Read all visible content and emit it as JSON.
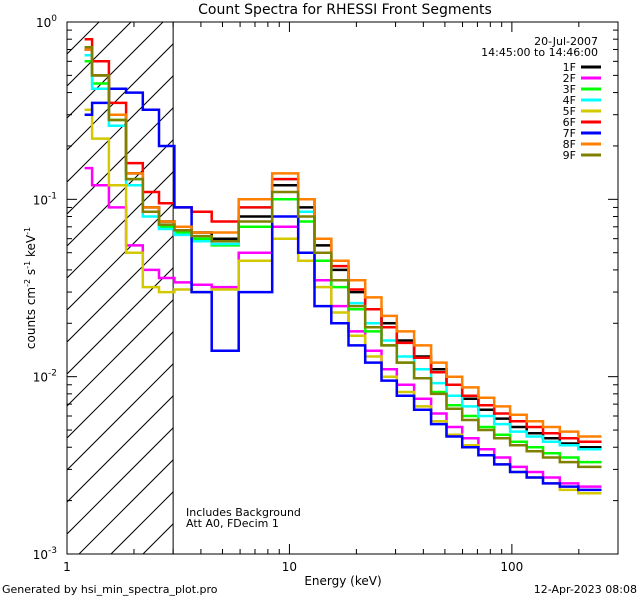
{
  "chart_data": {
    "type": "line",
    "title": "Count Spectra for RHESSI Front Segments",
    "xlabel": "Energy (keV)",
    "ylabel_main": "counts cm",
    "ylabel_sup1": "-2",
    "ylabel_mid": " s",
    "ylabel_sup2": "-1",
    "ylabel_end": " keV",
    "ylabel_sup3": "-1",
    "xscale": "log",
    "yscale": "log",
    "xlim": [
      1.0,
      300.0
    ],
    "ylim": [
      0.001,
      1.0
    ],
    "x_ticks": [
      {
        "value": 1,
        "label": "1"
      },
      {
        "value": 10,
        "label": "10"
      },
      {
        "value": 100,
        "label": "100"
      }
    ],
    "y_ticks": [
      {
        "value": 1,
        "base": "10",
        "exp": "0"
      },
      {
        "value": 0.1,
        "base": "10",
        "exp": "-1"
      },
      {
        "value": 0.01,
        "base": "10",
        "exp": "-2"
      },
      {
        "value": 0.001,
        "base": "10",
        "exp": "-3"
      }
    ],
    "hatched_region": [
      1.0,
      3.0
    ],
    "date": "20-Jul-2007",
    "time_range": "14:45:00 to 14:46:00",
    "annotation_1": "Includes Background",
    "annotation_2": "Att A0, FDecim 1",
    "legend_position": "top-right",
    "series": [
      {
        "name": "1F",
        "color": "#000000",
        "values": [
          0.7,
          0.5,
          0.3,
          0.14,
          0.09,
          0.075,
          0.07,
          0.065,
          0.06,
          0.08,
          0.12,
          0.09,
          0.055,
          0.04,
          0.03,
          0.024,
          0.02,
          0.016,
          0.013,
          0.011,
          0.009,
          0.0075,
          0.0065,
          0.0058,
          0.0052,
          0.0048,
          0.0045,
          0.0042,
          0.004
        ]
      },
      {
        "name": "2F",
        "color": "#ff00ff",
        "values": [
          0.15,
          0.12,
          0.09,
          0.055,
          0.04,
          0.036,
          0.034,
          0.033,
          0.032,
          0.05,
          0.07,
          0.05,
          0.035,
          0.025,
          0.018,
          0.014,
          0.011,
          0.009,
          0.0075,
          0.0062,
          0.0052,
          0.0045,
          0.0039,
          0.0035,
          0.0031,
          0.0029,
          0.0027,
          0.0025,
          0.0024
        ]
      },
      {
        "name": "3F",
        "color": "#00ff00",
        "values": [
          0.6,
          0.45,
          0.28,
          0.13,
          0.085,
          0.07,
          0.065,
          0.06,
          0.055,
          0.07,
          0.1,
          0.075,
          0.045,
          0.032,
          0.024,
          0.018,
          0.015,
          0.012,
          0.0098,
          0.0082,
          0.0069,
          0.006,
          0.0052,
          0.0047,
          0.0043,
          0.004,
          0.0037,
          0.0035,
          0.0033
        ]
      },
      {
        "name": "4F",
        "color": "#00ffff",
        "values": [
          0.65,
          0.42,
          0.26,
          0.12,
          0.08,
          0.068,
          0.063,
          0.058,
          0.056,
          0.09,
          0.13,
          0.085,
          0.05,
          0.035,
          0.026,
          0.02,
          0.016,
          0.013,
          0.011,
          0.0092,
          0.0078,
          0.0068,
          0.006,
          0.0054,
          0.0049,
          0.0046,
          0.0043,
          0.0041,
          0.0039
        ]
      },
      {
        "name": "5F",
        "color": "#d4c800",
        "values": [
          0.32,
          0.22,
          0.12,
          0.05,
          0.032,
          0.03,
          0.031,
          0.03,
          0.031,
          0.045,
          0.06,
          0.045,
          0.032,
          0.023,
          0.017,
          0.013,
          0.01,
          0.0082,
          0.0068,
          0.0056,
          0.0047,
          0.0041,
          0.0036,
          0.0032,
          0.0029,
          0.0027,
          0.0025,
          0.0023,
          0.0022
        ]
      },
      {
        "name": "6F",
        "color": "#ff0000",
        "values": [
          0.8,
          0.6,
          0.35,
          0.16,
          0.11,
          0.095,
          0.09,
          0.085,
          0.075,
          0.09,
          0.13,
          0.1,
          0.06,
          0.042,
          0.031,
          0.024,
          0.019,
          0.0155,
          0.0128,
          0.0106,
          0.009,
          0.0078,
          0.0069,
          0.0062,
          0.0056,
          0.0052,
          0.0048,
          0.0045,
          0.0043
        ]
      },
      {
        "name": "7F",
        "color": "#0000ff",
        "values": [
          0.3,
          0.35,
          0.42,
          0.4,
          0.32,
          0.2,
          0.09,
          0.03,
          0.014,
          0.03,
          0.08,
          0.05,
          0.025,
          0.02,
          0.015,
          0.012,
          0.0095,
          0.0078,
          0.0065,
          0.0054,
          0.0046,
          0.004,
          0.0036,
          0.0032,
          0.0029,
          0.0027,
          0.0025,
          0.0024,
          0.0023
        ]
      },
      {
        "name": "8F",
        "color": "#ff8000",
        "values": [
          0.7,
          0.5,
          0.3,
          0.14,
          0.09,
          0.075,
          0.07,
          0.065,
          0.065,
          0.1,
          0.14,
          0.1,
          0.06,
          0.045,
          0.035,
          0.028,
          0.022,
          0.018,
          0.015,
          0.012,
          0.01,
          0.0087,
          0.0076,
          0.0068,
          0.0061,
          0.0056,
          0.0052,
          0.0049,
          0.0046
        ]
      },
      {
        "name": "9F",
        "color": "#808000",
        "values": [
          0.72,
          0.5,
          0.28,
          0.13,
          0.085,
          0.072,
          0.067,
          0.062,
          0.058,
          0.075,
          0.11,
          0.08,
          0.05,
          0.035,
          0.025,
          0.019,
          0.015,
          0.012,
          0.0098,
          0.008,
          0.0066,
          0.0057,
          0.005,
          0.0045,
          0.0041,
          0.0038,
          0.0035,
          0.0033,
          0.0031
        ]
      }
    ],
    "x": [
      1.2,
      1.4,
      1.7,
      2.0,
      2.4,
      2.8,
      3.3,
      4.0,
      5.0,
      7.0,
      10.0,
      12.0,
      14.0,
      17.0,
      20.0,
      24.0,
      28.0,
      33.0,
      40.0,
      47.0,
      55.0,
      65.0,
      77.0,
      90.0,
      107.0,
      127.0,
      150.0,
      180.0,
      220.0
    ]
  },
  "footer": {
    "left": "Generated by hsi_min_spectra_plot.pro",
    "right": "12-Apr-2023 08:08"
  }
}
